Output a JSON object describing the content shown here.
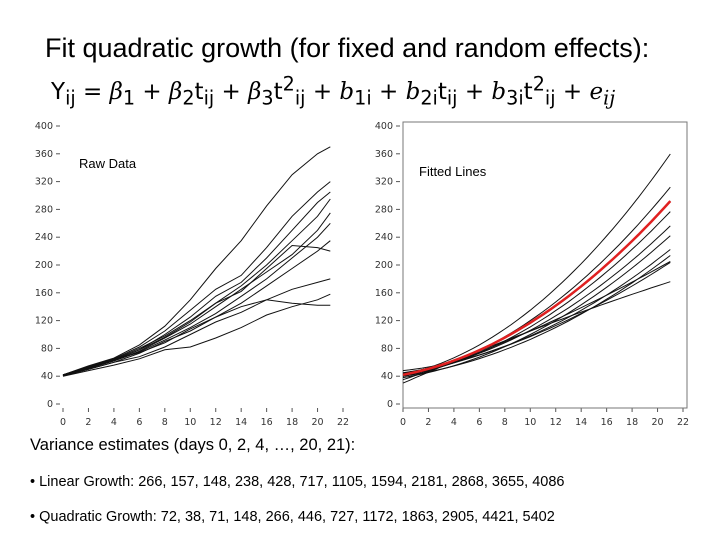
{
  "title": {
    "text": "Fit quadratic growth (for fixed and random effects):",
    "equation": {
      "lhs": "Yij",
      "terms": [
        "β1",
        "β2tij",
        "β3t²ij",
        "b1i",
        "b2itij",
        "b3it²ij",
        "eij"
      ]
    }
  },
  "chart_data": [
    {
      "type": "line",
      "panel_label": "Raw Data",
      "x_ticks": [
        "0",
        "2",
        "4",
        "6",
        "8",
        "10",
        "12",
        "14",
        "16",
        "18",
        "20",
        "22"
      ],
      "y_ticks": [
        "0",
        "40",
        "80",
        "120",
        "160",
        "200",
        "240",
        "280",
        "320",
        "360",
        "400"
      ],
      "xlim": [
        0,
        22
      ],
      "ylim": [
        0,
        400
      ],
      "grid": false,
      "series": [
        {
          "x": [
            0,
            2,
            4,
            6,
            8,
            10,
            12,
            14,
            16,
            18,
            20,
            21
          ],
          "values": [
            42,
            55,
            66,
            85,
            112,
            150,
            195,
            235,
            285,
            330,
            360,
            370
          ]
        },
        {
          "x": [
            0,
            2,
            4,
            6,
            8,
            10,
            12,
            14,
            16,
            18,
            20,
            21
          ],
          "values": [
            42,
            54,
            65,
            82,
            105,
            135,
            165,
            185,
            225,
            270,
            305,
            320
          ]
        },
        {
          "x": [
            0,
            2,
            4,
            6,
            8,
            10,
            12,
            14,
            16,
            18,
            20,
            21
          ],
          "values": [
            41,
            52,
            63,
            78,
            100,
            125,
            155,
            175,
            210,
            250,
            290,
            305
          ]
        },
        {
          "x": [
            0,
            2,
            4,
            6,
            8,
            10,
            12,
            14,
            16,
            18,
            20,
            21
          ],
          "values": [
            42,
            53,
            64,
            80,
            98,
            120,
            145,
            170,
            200,
            235,
            270,
            295
          ]
        },
        {
          "x": [
            0,
            2,
            4,
            6,
            8,
            10,
            12,
            14,
            16,
            18,
            20,
            21
          ],
          "values": [
            41,
            51,
            62,
            76,
            95,
            115,
            140,
            165,
            190,
            215,
            250,
            275
          ]
        },
        {
          "x": [
            0,
            2,
            4,
            6,
            8,
            10,
            12,
            14,
            16,
            18,
            20,
            21
          ],
          "values": [
            42,
            52,
            62,
            75,
            92,
            110,
            130,
            155,
            180,
            210,
            240,
            260
          ]
        },
        {
          "x": [
            0,
            2,
            4,
            6,
            8,
            10,
            12,
            14,
            16,
            18,
            20,
            21
          ],
          "values": [
            40,
            50,
            60,
            73,
            90,
            105,
            125,
            145,
            170,
            195,
            220,
            235
          ]
        },
        {
          "x": [
            0,
            2,
            4,
            6,
            8,
            10,
            12,
            14,
            16,
            18,
            20,
            21
          ],
          "values": [
            41,
            52,
            63,
            78,
            96,
            118,
            145,
            162,
            195,
            228,
            225,
            220
          ]
        },
        {
          "x": [
            0,
            2,
            4,
            6,
            8,
            10,
            12,
            14,
            16,
            18,
            20,
            21
          ],
          "values": [
            42,
            53,
            64,
            74,
            88,
            108,
            125,
            140,
            150,
            165,
            175,
            180
          ]
        },
        {
          "x": [
            0,
            2,
            4,
            6,
            8,
            10,
            12,
            14,
            16,
            18,
            20,
            21
          ],
          "values": [
            41,
            50,
            60,
            68,
            82,
            100,
            118,
            132,
            150,
            145,
            142,
            142
          ]
        },
        {
          "x": [
            0,
            2,
            4,
            6,
            8,
            10,
            12,
            14,
            16,
            18,
            20,
            21
          ],
          "values": [
            40,
            48,
            56,
            65,
            78,
            82,
            95,
            110,
            128,
            140,
            150,
            158
          ]
        }
      ]
    },
    {
      "type": "line",
      "panel_label": "Fitted Lines",
      "x_ticks": [
        "0",
        "2",
        "4",
        "6",
        "8",
        "10",
        "12",
        "14",
        "16",
        "18",
        "20",
        "22"
      ],
      "y_ticks": [
        "0",
        "40",
        "80",
        "120",
        "160",
        "200",
        "240",
        "280",
        "320",
        "360",
        "400"
      ],
      "xlim": [
        0,
        22
      ],
      "ylim": [
        0,
        400
      ],
      "grid": false,
      "series": [
        {
          "fit": [
            42,
            4.0,
            0.53
          ]
        },
        {
          "fit": [
            40,
            3.5,
            0.45
          ]
        },
        {
          "fit": [
            44,
            3.0,
            0.42
          ]
        },
        {
          "fit": [
            40,
            3.3,
            0.38
          ]
        },
        {
          "fit": [
            45,
            2.5,
            0.36
          ]
        },
        {
          "fit": [
            38,
            3.0,
            0.32
          ]
        },
        {
          "fit": [
            48,
            2.0,
            0.3
          ]
        },
        {
          "fit": [
            40,
            2.6,
            0.27
          ]
        },
        {
          "fit": [
            42,
            3.5,
            0.2
          ]
        },
        {
          "fit": [
            30,
            8.0,
            -0.05
          ]
        },
        {
          "fit": [
            35,
            6.0,
            0.1
          ]
        }
      ],
      "mean_series": {
        "fit": [
          42,
          3.5,
          0.4
        ],
        "color": "#e02020"
      }
    }
  ],
  "variance": {
    "title": "Variance estimates (days 0, 2, 4, …, 20, 21):",
    "linear": "• Linear Growth: 266, 157, 148, 238, 428, 717, 1105, 1594, 2181, 2868, 3655, 4086",
    "quadratic": "• Quadratic Growth: 72, 38, 71, 148, 266, 446, 727, 1172, 1863, 2905, 4421, 5402"
  }
}
